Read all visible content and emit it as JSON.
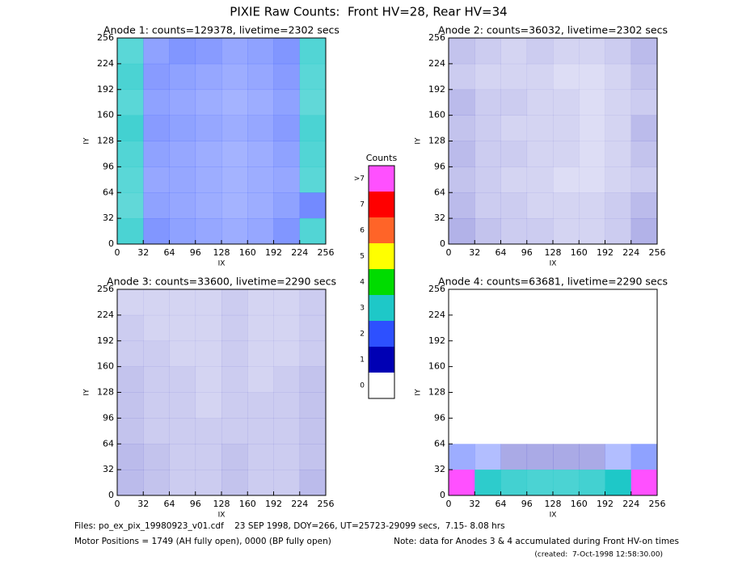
{
  "title": "PIXIE Raw Counts:  Front HV=28, Rear HV=34",
  "chart_data": [
    {
      "type": "heatmap",
      "title": "Anode 1: counts=129378, livetime=2302 secs",
      "xlabel": "IX",
      "ylabel": "IY",
      "xlim": [
        0,
        256
      ],
      "ylim": [
        0,
        256
      ],
      "xticks": [
        0,
        32,
        64,
        96,
        128,
        160,
        192,
        224,
        256
      ],
      "yticks": [
        0,
        32,
        64,
        96,
        128,
        160,
        192,
        224,
        256
      ],
      "z": [
        [
          2.2,
          1.6,
          1.8,
          1.7,
          1.5,
          1.6,
          1.8,
          2.3
        ],
        [
          2.4,
          1.7,
          1.6,
          1.5,
          1.4,
          1.5,
          1.7,
          2.2
        ],
        [
          2.2,
          1.6,
          1.5,
          1.4,
          1.3,
          1.4,
          1.6,
          2.1
        ],
        [
          2.5,
          1.7,
          1.6,
          1.5,
          1.4,
          1.5,
          1.7,
          2.4
        ],
        [
          2.3,
          1.6,
          1.5,
          1.4,
          1.3,
          1.4,
          1.6,
          2.3
        ],
        [
          2.2,
          1.5,
          1.5,
          1.4,
          1.3,
          1.4,
          1.5,
          2.2
        ],
        [
          2.1,
          1.6,
          1.5,
          1.4,
          1.3,
          1.4,
          1.6,
          2.0
        ],
        [
          2.4,
          1.8,
          1.6,
          1.5,
          1.4,
          1.5,
          1.8,
          2.3
        ]
      ]
    },
    {
      "type": "heatmap",
      "title": "Anode 2: counts=36032, livetime=2302 secs",
      "xlabel": "IX",
      "ylabel": "IY",
      "xlim": [
        0,
        256
      ],
      "ylim": [
        0,
        256
      ],
      "xticks": [
        0,
        32,
        64,
        96,
        128,
        160,
        192,
        224,
        256
      ],
      "yticks": [
        0,
        32,
        64,
        96,
        128,
        160,
        192,
        224,
        256
      ],
      "z": [
        [
          0.7,
          0.6,
          0.5,
          0.6,
          0.5,
          0.5,
          0.6,
          0.8
        ],
        [
          0.6,
          0.5,
          0.5,
          0.5,
          0.4,
          0.4,
          0.5,
          0.7
        ],
        [
          0.8,
          0.6,
          0.6,
          0.5,
          0.5,
          0.4,
          0.5,
          0.6
        ],
        [
          0.7,
          0.6,
          0.5,
          0.5,
          0.5,
          0.4,
          0.5,
          0.8
        ],
        [
          0.8,
          0.6,
          0.6,
          0.5,
          0.5,
          0.4,
          0.5,
          0.7
        ],
        [
          0.7,
          0.6,
          0.5,
          0.5,
          0.4,
          0.4,
          0.5,
          0.6
        ],
        [
          0.8,
          0.6,
          0.6,
          0.5,
          0.5,
          0.5,
          0.6,
          0.8
        ],
        [
          0.9,
          0.7,
          0.6,
          0.6,
          0.5,
          0.5,
          0.6,
          0.9
        ]
      ]
    },
    {
      "type": "heatmap",
      "title": "Anode 3: counts=33600, livetime=2290 secs",
      "xlabel": "IX",
      "ylabel": "IY",
      "xlim": [
        0,
        256
      ],
      "ylim": [
        0,
        256
      ],
      "xticks": [
        0,
        32,
        64,
        96,
        128,
        160,
        192,
        224,
        256
      ],
      "yticks": [
        0,
        32,
        64,
        96,
        128,
        160,
        192,
        224,
        256
      ],
      "z": [
        [
          0.5,
          0.5,
          0.5,
          0.5,
          0.6,
          0.5,
          0.5,
          0.6
        ],
        [
          0.6,
          0.5,
          0.5,
          0.5,
          0.6,
          0.5,
          0.5,
          0.6
        ],
        [
          0.6,
          0.6,
          0.5,
          0.5,
          0.6,
          0.5,
          0.5,
          0.6
        ],
        [
          0.7,
          0.6,
          0.6,
          0.5,
          0.6,
          0.5,
          0.6,
          0.7
        ],
        [
          0.7,
          0.6,
          0.6,
          0.5,
          0.6,
          0.6,
          0.6,
          0.7
        ],
        [
          0.7,
          0.6,
          0.6,
          0.6,
          0.6,
          0.6,
          0.6,
          0.7
        ],
        [
          0.8,
          0.7,
          0.6,
          0.6,
          0.7,
          0.6,
          0.6,
          0.7
        ],
        [
          0.8,
          0.7,
          0.6,
          0.6,
          0.7,
          0.6,
          0.6,
          0.8
        ]
      ]
    },
    {
      "type": "heatmap",
      "title": "Anode 4: counts=63681, livetime=2290 secs",
      "xlabel": "IX",
      "ylabel": "IY",
      "xlim": [
        0,
        256
      ],
      "ylim": [
        0,
        256
      ],
      "xticks": [
        0,
        32,
        64,
        96,
        128,
        160,
        192,
        224,
        256
      ],
      "yticks": [
        0,
        32,
        64,
        96,
        128,
        160,
        192,
        224,
        256
      ],
      "z": [
        [
          0,
          0,
          0,
          0,
          0,
          0,
          0,
          0
        ],
        [
          0,
          0,
          0,
          0,
          0,
          0,
          0,
          0
        ],
        [
          0,
          0,
          0,
          0,
          0,
          0,
          0,
          0
        ],
        [
          0,
          0,
          0,
          0,
          0,
          0,
          0,
          0
        ],
        [
          0,
          0,
          0,
          0,
          0,
          0,
          0,
          0
        ],
        [
          0,
          0,
          0,
          0,
          0,
          0,
          0,
          0
        ],
        [
          1.4,
          1.1,
          1.0,
          1.0,
          1.0,
          1.0,
          1.1,
          1.6
        ],
        [
          7.5,
          2.8,
          2.5,
          2.4,
          2.4,
          2.5,
          3.0,
          8
        ]
      ]
    }
  ],
  "colorbar": {
    "title": "Counts",
    "labels": [
      0,
      1,
      2,
      3,
      4,
      5,
      6,
      7,
      ">7"
    ],
    "colors": [
      "#ffffff",
      "#0000b4",
      "#2d50ff",
      "#1ec8c8",
      "#00dc00",
      "#ffff00",
      "#ff6428",
      "#ff0000",
      "#ff50ff"
    ]
  },
  "footer": {
    "files": "Files: po_ex_pix_19980923_v01.cdf    23 SEP 1998, DOY=266, UT=25723-29099 secs,  7.15- 8.08 hrs",
    "motor": "Motor Positions = 1749 (AH fully open), 0000 (BP fully open)",
    "note": "Note: data for Anodes 3 & 4 accumulated during Front HV-on times",
    "created": "(created:  7-Oct-1998 12:58:30.00)"
  }
}
